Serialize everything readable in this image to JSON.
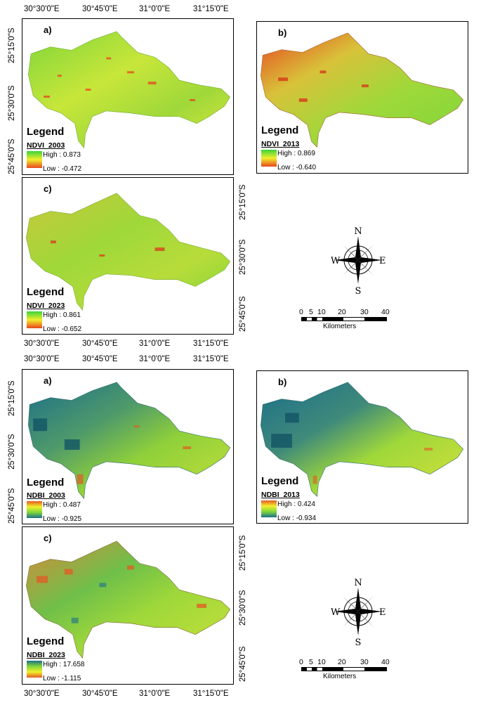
{
  "ndvi": {
    "top_lon_labels": [
      "30°30'0\"E",
      "30°45'0\"E",
      "31°0'0\"E",
      "31°15'0\"E"
    ],
    "left_lat_labels": [
      "25°15'0\"S",
      "25°30'0\"S",
      "25°45'0\"S"
    ],
    "right_lat_labels": [
      "25°15'0\"S",
      "25°30'0\"S",
      "25°45'0\"S"
    ],
    "bottom_lon_labels": [
      "30°30'0\"E",
      "30°45'0\"E",
      "31°0'0\"E",
      "31°15'0\"E"
    ],
    "panels": [
      {
        "label": "a)",
        "legend_title": "Legend",
        "layer": "NDVI_2003",
        "high": "High : 0.873",
        "low": "Low : -0.472"
      },
      {
        "label": "b)",
        "legend_title": "Legend",
        "layer": "NDVI_2013",
        "high": "High : 0.869",
        "low": "Low : -0.640"
      },
      {
        "label": "c)",
        "legend_title": "Legend",
        "layer": "NDVI_2023",
        "high": "High : 0.861",
        "low": "Low : -0.652"
      }
    ],
    "scale": {
      "ticks": [
        "0",
        "5",
        "10",
        "20",
        "30",
        "40"
      ],
      "unit": "Kilometers"
    },
    "compass": {
      "n": "N",
      "s": "S",
      "e": "E",
      "w": "W"
    }
  },
  "ndbi": {
    "top_lon_labels": [
      "30°30'0\"E",
      "30°45'0\"E",
      "31°0'0\"E",
      "31°15'0\"E"
    ],
    "left_lat_labels": [
      "25°15'0\"S",
      "25°30'0\"S",
      "25°45'0\"S"
    ],
    "right_lat_labels": [
      "25°15'0\"S",
      "25°30'0\"S",
      "25°45'0\"S"
    ],
    "bottom_lon_labels": [
      "30°30'0\"E",
      "30°45'0\"E",
      "31°0'0\"E",
      "31°15'0\"E"
    ],
    "panels": [
      {
        "label": "a)",
        "legend_title": "Legend",
        "layer": "NDBI_2003",
        "high": "High : 0.487",
        "low": "Low : -0.925"
      },
      {
        "label": "b)",
        "legend_title": "Legend",
        "layer": "NDBI_2013",
        "high": "High : 0.424",
        "low": "Low : -0.934"
      },
      {
        "label": "c)",
        "legend_title": "Legend",
        "layer": "NDBI_2023",
        "high": "High : 17.658",
        "low": "Low : -1.115"
      }
    ],
    "scale": {
      "ticks": [
        "0",
        "5",
        "10",
        "20",
        "30",
        "40"
      ],
      "unit": "Kilometers"
    },
    "compass": {
      "n": "N",
      "s": "S",
      "e": "E",
      "w": "W"
    }
  },
  "colors": {
    "ndvi_high": "#39d43a",
    "ndvi_mid": "#f2ef2c",
    "ndvi_low": "#e8461e",
    "ndbi_high": "#1c6f8a",
    "ndbi_mid": "#7fd63a",
    "ndbi_low": "#e35a24"
  }
}
